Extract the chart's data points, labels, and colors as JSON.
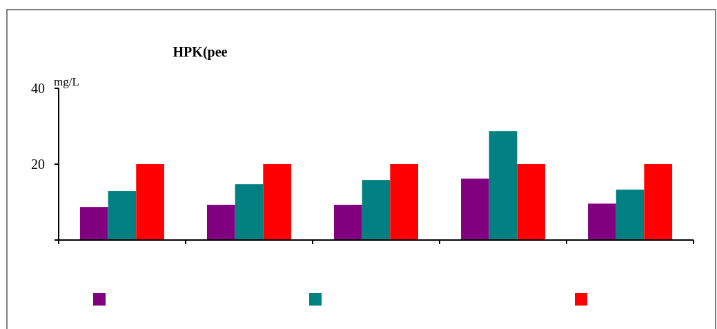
{
  "chart_data": {
    "type": "bar",
    "title": "HPK(pee",
    "ylabel": "mg/L",
    "categories": [
      null,
      null,
      null,
      null,
      null
    ],
    "series": [
      {
        "color": "#800080",
        "values": [
          8.7,
          9.3,
          9.3,
          16.2,
          9.6
        ]
      },
      {
        "color": "#008080",
        "values": [
          12.9,
          14.7,
          15.8,
          28.7,
          13.3
        ]
      },
      {
        "color": "#ff0000",
        "values": [
          20,
          20,
          20,
          20,
          20
        ]
      }
    ],
    "ylim": [
      0,
      40
    ],
    "yticks": [
      {
        "value": 0,
        "label": null
      },
      20,
      40
    ],
    "grid": false
  }
}
